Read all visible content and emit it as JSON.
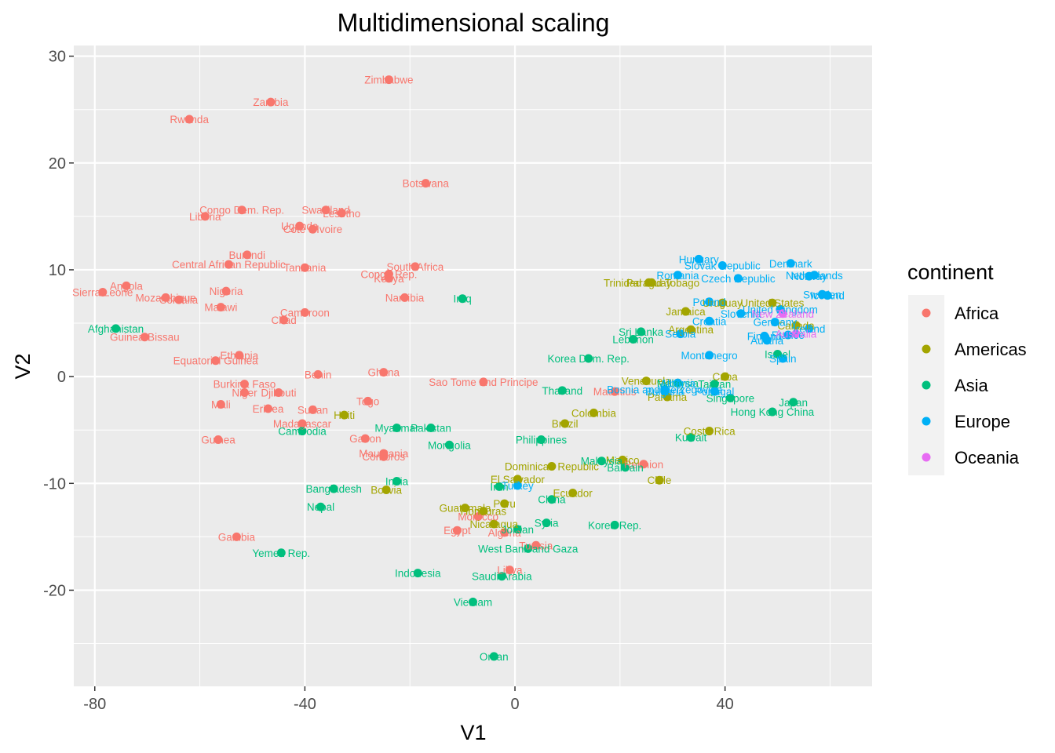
{
  "chart_data": {
    "type": "scatter",
    "title": "Multidimensional scaling",
    "xlabel": "V1",
    "ylabel": "V2",
    "xlim": [
      -84,
      68
    ],
    "ylim": [
      -29,
      31
    ],
    "x_ticks": [
      -80,
      -40,
      0,
      40
    ],
    "y_ticks": [
      -20,
      -10,
      0,
      10,
      20,
      30
    ],
    "grid": true,
    "legend": {
      "title": "continent",
      "position": "right"
    },
    "colors": {
      "Africa": "#F8766D",
      "Americas": "#A3A500",
      "Asia": "#00BF7D",
      "Europe": "#00B0F6",
      "Oceania": "#E76BF3"
    },
    "series": [
      {
        "name": "Africa",
        "points": [
          {
            "label": "Zimbabwe",
            "x": -24,
            "y": 27.8
          },
          {
            "label": "Zambia",
            "x": -46.5,
            "y": 25.7
          },
          {
            "label": "Rwanda",
            "x": -62,
            "y": 24.1
          },
          {
            "label": "Botswana",
            "x": -17,
            "y": 18.1
          },
          {
            "label": "Congo Dem. Rep.",
            "x": -52,
            "y": 15.6
          },
          {
            "label": "Liberia",
            "x": -59,
            "y": 15
          },
          {
            "label": "Swaziland",
            "x": -36,
            "y": 15.6
          },
          {
            "label": "Lesotho",
            "x": -33,
            "y": 15.3
          },
          {
            "label": "Uganda",
            "x": -41,
            "y": 14.1
          },
          {
            "label": "Cote d'Ivoire",
            "x": -38.5,
            "y": 13.8
          },
          {
            "label": "Burundi",
            "x": -51,
            "y": 11.4
          },
          {
            "label": "Central African Republic",
            "x": -54.5,
            "y": 10.5
          },
          {
            "label": "Tanzania",
            "x": -40,
            "y": 10.2
          },
          {
            "label": "South Africa",
            "x": -19,
            "y": 10.3
          },
          {
            "label": "Congo Rep.",
            "x": -24,
            "y": 9.6
          },
          {
            "label": "Kenya",
            "x": -24,
            "y": 9.2
          },
          {
            "label": "Angola",
            "x": -74,
            "y": 8.5
          },
          {
            "label": "Sierra Leone",
            "x": -78.5,
            "y": 7.9
          },
          {
            "label": "Nigeria",
            "x": -55,
            "y": 8
          },
          {
            "label": "Mozambique",
            "x": -66.5,
            "y": 7.4
          },
          {
            "label": "Somalia",
            "x": -64,
            "y": 7.2
          },
          {
            "label": "Malawi",
            "x": -56,
            "y": 6.5
          },
          {
            "label": "Namibia",
            "x": -21,
            "y": 7.4
          },
          {
            "label": "Cameroon",
            "x": -40,
            "y": 6
          },
          {
            "label": "Chad",
            "x": -44,
            "y": 5.3
          },
          {
            "label": "Guinea-Bissau",
            "x": -70.5,
            "y": 3.7
          },
          {
            "label": "Ethiopia",
            "x": -52.5,
            "y": 2
          },
          {
            "label": "Equatorial Guinea",
            "x": -57,
            "y": 1.5
          },
          {
            "label": "Benin",
            "x": -37.5,
            "y": 0.2
          },
          {
            "label": "Ghana",
            "x": -25,
            "y": 0.4
          },
          {
            "label": "Sao Tome and Principe",
            "x": -6,
            "y": -0.5
          },
          {
            "label": "Burkina Faso",
            "x": -51.5,
            "y": -0.7
          },
          {
            "label": "Niger",
            "x": -51.5,
            "y": -1.5
          },
          {
            "label": "Djibouti",
            "x": -45,
            "y": -1.5
          },
          {
            "label": "Mali",
            "x": -56,
            "y": -2.6
          },
          {
            "label": "Togo",
            "x": -28,
            "y": -2.3
          },
          {
            "label": "Eritrea",
            "x": -47,
            "y": -3
          },
          {
            "label": "Sudan",
            "x": -38.5,
            "y": -3.1
          },
          {
            "label": "Madagascar",
            "x": -40.5,
            "y": -4.4
          },
          {
            "label": "Gabon",
            "x": -28.5,
            "y": -5.8
          },
          {
            "label": "Guinea",
            "x": -56.5,
            "y": -5.9
          },
          {
            "label": "Mauritania",
            "x": -25,
            "y": -7.2
          },
          {
            "label": "Comoros",
            "x": -25,
            "y": -7.5
          },
          {
            "label": "Mauritius",
            "x": 19,
            "y": -1.4
          },
          {
            "label": "Reunion",
            "x": 24.5,
            "y": -8.2
          },
          {
            "label": "Morocco",
            "x": -7,
            "y": -13.1
          },
          {
            "label": "Egypt",
            "x": -11,
            "y": -14.4
          },
          {
            "label": "Algeria",
            "x": -2,
            "y": -14.6
          },
          {
            "label": "Tunisia",
            "x": 4,
            "y": -15.8
          },
          {
            "label": "Gambia",
            "x": -53,
            "y": -15
          },
          {
            "label": "Libya",
            "x": -1,
            "y": -18.1
          }
        ]
      },
      {
        "name": "Americas",
        "points": [
          {
            "label": "Trinidad and Tobago",
            "x": 26,
            "y": 8.8
          },
          {
            "label": "Paraguay",
            "x": 25.5,
            "y": 8.8
          },
          {
            "label": "Jamaica",
            "x": 32.5,
            "y": 6.1
          },
          {
            "label": "Uruguay",
            "x": 39.5,
            "y": 6.9
          },
          {
            "label": "United States",
            "x": 49,
            "y": 6.9
          },
          {
            "label": "Argentina",
            "x": 33.5,
            "y": 4.4
          },
          {
            "label": "Canada",
            "x": 53.5,
            "y": 4.8
          },
          {
            "label": "Cuba",
            "x": 40,
            "y": 0
          },
          {
            "label": "Venezuela",
            "x": 25,
            "y": -0.4
          },
          {
            "label": "Panama",
            "x": 29,
            "y": -1.9
          },
          {
            "label": "Haiti",
            "x": -32.5,
            "y": -3.6
          },
          {
            "label": "Colombia",
            "x": 15,
            "y": -3.4
          },
          {
            "label": "Brazil",
            "x": 9.5,
            "y": -4.4
          },
          {
            "label": "Costa Rica",
            "x": 37,
            "y": -5.1
          },
          {
            "label": "Mexico",
            "x": 20.5,
            "y": -7.8
          },
          {
            "label": "Dominican Republic",
            "x": 7,
            "y": -8.4
          },
          {
            "label": "Chile",
            "x": 27.5,
            "y": -9.7
          },
          {
            "label": "El Salvador",
            "x": 0.5,
            "y": -9.6
          },
          {
            "label": "Ecuador",
            "x": 11,
            "y": -10.9
          },
          {
            "label": "Bolivia",
            "x": -24.5,
            "y": -10.6
          },
          {
            "label": "Peru",
            "x": -2,
            "y": -11.9
          },
          {
            "label": "Guatemala",
            "x": -9.5,
            "y": -12.3
          },
          {
            "label": "Honduras",
            "x": -6,
            "y": -12.6
          },
          {
            "label": "Nicaragua",
            "x": -4,
            "y": -13.8
          }
        ]
      },
      {
        "name": "Asia",
        "points": [
          {
            "label": "Afghanistan",
            "x": -76,
            "y": 4.5
          },
          {
            "label": "Iraq",
            "x": -10,
            "y": 7.3
          },
          {
            "label": "Sri Lanka",
            "x": 24,
            "y": 4.2
          },
          {
            "label": "Lebanon",
            "x": 22.5,
            "y": 3.5
          },
          {
            "label": "Korea Dem. Rep.",
            "x": 14,
            "y": 1.7
          },
          {
            "label": "Thailand",
            "x": 9,
            "y": -1.3
          },
          {
            "label": "Malaysia",
            "x": 31,
            "y": -0.6
          },
          {
            "label": "Taiwan",
            "x": 38,
            "y": -0.7
          },
          {
            "label": "Singapore",
            "x": 41,
            "y": -2
          },
          {
            "label": "Israel",
            "x": 50,
            "y": 2.1
          },
          {
            "label": "Japan",
            "x": 53,
            "y": -2.4
          },
          {
            "label": "Hong Kong China",
            "x": 49,
            "y": -3.3
          },
          {
            "label": "Kuwait",
            "x": 33.5,
            "y": -5.7
          },
          {
            "label": "Myanmar",
            "x": -22.5,
            "y": -4.8
          },
          {
            "label": "Pakistan",
            "x": -16,
            "y": -4.8
          },
          {
            "label": "Cambodia",
            "x": -40.5,
            "y": -5.1
          },
          {
            "label": "Philippines",
            "x": 5,
            "y": -5.9
          },
          {
            "label": "Mongolia",
            "x": -12.5,
            "y": -6.4
          },
          {
            "label": "Bahrain",
            "x": 21,
            "y": -8.5
          },
          {
            "label": "Malaysia",
            "x": 16.5,
            "y": -7.9
          },
          {
            "label": "India",
            "x": -22.5,
            "y": -9.8
          },
          {
            "label": "Bangladesh",
            "x": -34.5,
            "y": -10.5
          },
          {
            "label": "Nepal",
            "x": -37,
            "y": -12.2
          },
          {
            "label": "Iran",
            "x": -3,
            "y": -10.3
          },
          {
            "label": "China",
            "x": 7,
            "y": -11.5
          },
          {
            "label": "Syria",
            "x": 6,
            "y": -13.7
          },
          {
            "label": "Korea Rep.",
            "x": 19,
            "y": -13.9
          },
          {
            "label": "Jordan",
            "x": 0.5,
            "y": -14.3
          },
          {
            "label": "West Bank and Gaza",
            "x": 2.5,
            "y": -16.1
          },
          {
            "label": "Yemen Rep.",
            "x": -44.5,
            "y": -16.5
          },
          {
            "label": "Indonesia",
            "x": -18.5,
            "y": -18.4
          },
          {
            "label": "Saudi Arabia",
            "x": -2.5,
            "y": -18.7
          },
          {
            "label": "Vietnam",
            "x": -8,
            "y": -21.1
          },
          {
            "label": "Oman",
            "x": -4,
            "y": -26.2
          }
        ]
      },
      {
        "name": "Europe",
        "points": [
          {
            "label": "Hungary",
            "x": 35,
            "y": 11
          },
          {
            "label": "Slovak Republic",
            "x": 39.5,
            "y": 10.4
          },
          {
            "label": "Czech Republic",
            "x": 42.5,
            "y": 9.2
          },
          {
            "label": "Romania",
            "x": 31,
            "y": 9.5
          },
          {
            "label": "Denmark",
            "x": 52.5,
            "y": 10.6
          },
          {
            "label": "Netherlands",
            "x": 57,
            "y": 9.5
          },
          {
            "label": "Norway",
            "x": 56,
            "y": 9.4
          },
          {
            "label": "Sweden",
            "x": 58.5,
            "y": 7.7
          },
          {
            "label": "Iceland",
            "x": 59.5,
            "y": 7.6
          },
          {
            "label": "Poland",
            "x": 37,
            "y": 7
          },
          {
            "label": "United Kingdom",
            "x": 50.5,
            "y": 6.3
          },
          {
            "label": "Slovenia",
            "x": 43,
            "y": 5.9
          },
          {
            "label": "Croatia",
            "x": 37,
            "y": 5.2
          },
          {
            "label": "Serbia",
            "x": 31.5,
            "y": 4
          },
          {
            "label": "Germany",
            "x": 49.5,
            "y": 5.1
          },
          {
            "label": "Ireland",
            "x": 56,
            "y": 4.5
          },
          {
            "label": "Finland",
            "x": 47.5,
            "y": 3.8
          },
          {
            "label": "France",
            "x": 52,
            "y": 3.9
          },
          {
            "label": "Austria",
            "x": 48,
            "y": 3.4
          },
          {
            "label": "Montenegro",
            "x": 37,
            "y": 2
          },
          {
            "label": "Spain",
            "x": 51,
            "y": 1.7
          },
          {
            "label": "Albania",
            "x": 31,
            "y": -0.6
          },
          {
            "label": "Bosnia and Herzegovina",
            "x": 28.5,
            "y": -1.2
          },
          {
            "label": "Portugal",
            "x": 38,
            "y": -1.4
          },
          {
            "label": "Bulgaria",
            "x": 28.5,
            "y": -1.4
          },
          {
            "label": "Turkey",
            "x": 0.5,
            "y": -10.2
          }
        ]
      },
      {
        "name": "Oceania",
        "points": [
          {
            "label": "New Zealand",
            "x": 51,
            "y": 5.9
          },
          {
            "label": "Australia",
            "x": 53.5,
            "y": 4
          }
        ]
      }
    ]
  }
}
